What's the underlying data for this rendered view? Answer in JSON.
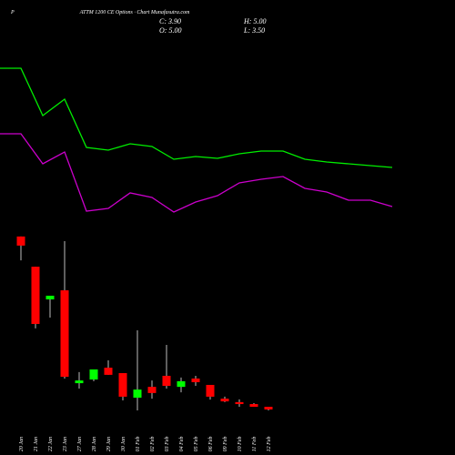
{
  "header": {
    "symbol": "P",
    "title": "ATTM 1200 CE Options · Chart Munafasutra.com",
    "close": "C: 3.90",
    "high": "H: 5.00",
    "open": "O: 5.00",
    "low": "L: 3.50"
  },
  "chart_data": [
    {
      "type": "line",
      "x": [
        0,
        1,
        2,
        3,
        4,
        5,
        6,
        7,
        8,
        9,
        10,
        11,
        12,
        13,
        14,
        15,
        16,
        17,
        18
      ],
      "ylim": [
        0,
        250
      ],
      "series": [
        {
          "color": "#00ee00",
          "values": [
            175,
            175,
            123,
            141,
            88,
            85,
            92,
            89,
            75,
            78,
            76,
            81,
            84,
            84,
            75,
            72,
            70,
            68,
            66
          ]
        },
        {
          "color": "#cc00cc",
          "values": [
            103,
            103,
            70,
            83,
            18,
            21,
            38,
            33,
            17,
            28,
            35,
            49,
            53,
            56,
            43,
            39,
            30,
            30,
            23
          ]
        }
      ]
    },
    {
      "type": "candlestick",
      "ylim": [
        0,
        170
      ],
      "up_color": "#00ff00",
      "down_color": "#ff0000",
      "categories": [
        "20 Jan",
        "21 Jan",
        "22 Jan",
        "23 Jan",
        "27 Jan",
        "28 Jan",
        "29 Jan",
        "30 Jan",
        "01 Feb",
        "02 Feb",
        "03 Feb",
        "04 Feb",
        "05 Feb",
        "06 Feb",
        "09 Feb",
        "10 Feb",
        "11 Feb",
        "12 Feb"
      ],
      "open": [
        74.3,
        62.0,
        48.7,
        52.4,
        14.6,
        16.1,
        20.9,
        18.7,
        8.7,
        13.1,
        17.6,
        13.1,
        16.5,
        13.9,
        8.3,
        6.9,
        6.1,
        5.0
      ],
      "high": [
        74.3,
        62.0,
        50.2,
        72.4,
        19.1,
        20.2,
        23.9,
        18.7,
        36.1,
        15.7,
        30.2,
        16.9,
        17.6,
        13.9,
        9.1,
        8.0,
        6.5,
        5.0
      ],
      "low": [
        64.6,
        36.9,
        41.3,
        16.5,
        12.4,
        15.4,
        18.0,
        7.6,
        3.5,
        8.3,
        12.4,
        10.9,
        13.5,
        7.9,
        6.9,
        5.0,
        5.0,
        3.5
      ],
      "close": [
        70.6,
        38.7,
        50.2,
        17.2,
        15.7,
        20.2,
        18.0,
        9.1,
        12.0,
        10.6,
        13.5,
        15.4,
        15.0,
        9.1,
        7.2,
        6.1,
        5.0,
        3.9
      ]
    }
  ]
}
